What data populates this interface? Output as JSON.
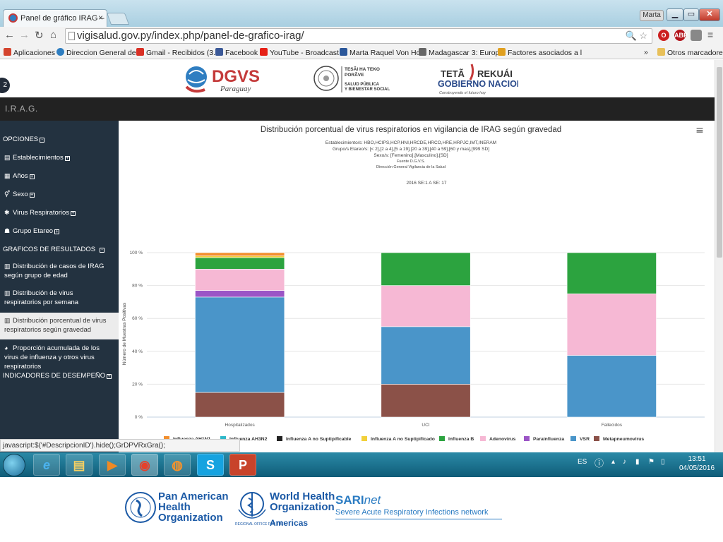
{
  "browser": {
    "tab_title": "Panel de gráfico IRAG – D",
    "tab_close": "×",
    "user_label": "Marta",
    "url": "vigisalud.gov.py/index.php/panel-de-grafico-irag/",
    "omnibox_icons": "🔍 ☆",
    "bookmarks": [
      {
        "label": "Aplicaciones",
        "color": "#d4442e"
      },
      {
        "label": "Direccion General de",
        "color": "#2f7ec1"
      },
      {
        "label": "Gmail - Recibidos (3.2",
        "color": "#d93025"
      },
      {
        "label": "Facebook",
        "color": "#3b5998"
      },
      {
        "label": "YouTube - Broadcast",
        "color": "#e62117"
      },
      {
        "label": "Marta Raquel Von Ho",
        "color": "#2b579a"
      },
      {
        "label": "Madagascar 3: Europ",
        "color": "#666666"
      },
      {
        "label": "Factores asociados a l",
        "color": "#e0a020"
      }
    ],
    "bookmarks_more": "»",
    "other_bookmarks": "Otros marcadores",
    "status_text": "javascript:$('#DescripcionID').hide();GrDPVRxGra();"
  },
  "logos": {
    "dgvs": "DGVS",
    "dgvs_sub": "Paraguay",
    "ministry_line1": "TESÃI HA TEKO",
    "ministry_line2": "PORÃVE",
    "ministry_line3": "SALUD PÚBLICA",
    "ministry_line4": "Y BIENESTAR SOCIAL",
    "gov_line1": "TETÃ",
    "gov_line1b": "REKUÁI",
    "gov_line2": "GOBIERNO NACIONAL",
    "gov_line3": "Construyendo el futuro hoy"
  },
  "app": {
    "title": "I.R.A.G.",
    "menu_toggle": "2"
  },
  "sidebar": {
    "opciones": "OPCIONES",
    "establecimientos": "Establecimientos",
    "anos": "Años",
    "sexo": "Sexo",
    "virus": "Virus Respiratorios",
    "grupo": "Grupo Etareo",
    "graficos": "GRAFICOS DE RESULTADOS",
    "item1": "Distribución de casos de IRAG según grupo de edad",
    "item2": "Distribución de virus respiratorios por semana",
    "item3": "Distribución porcentual de virus respiratorios según gravedad",
    "item4": "Proporción acumulada de los virus de influenza y otros virus respiratorios",
    "indicadores": "INDICADORES DE DESEMPEÑO"
  },
  "chart_data": {
    "type": "bar",
    "stacked": true,
    "title": "Distribución porcentual de virus respiratorios en vigilancia de IRAG según gravedad",
    "subtitle_lines": [
      "Establecimiento/s: HBO,HCIPS,HCP,HNI,HRCDE,HRCO,HRE,HRPJC,IMT,INERAM",
      "Grupo/s Etareo/s: [< 2],[2 a 4],[5 a 19],[20 a 39],[40 a 59],[60 y mas],[999 SD]",
      "Sexo/s: [Femenino],[Masculino],[SD]",
      "Fuente D.G.V.S.",
      "Dirección General Vigilancia de la Salud"
    ],
    "period": "2016 SE:1 A SE: 17",
    "ylabel": "Número de Muestras Positivas",
    "xlabel": "",
    "ylim": [
      0,
      100
    ],
    "yticks": [
      "0 %",
      "20 %",
      "40 %",
      "60 %",
      "80 %",
      "100 %"
    ],
    "categories": [
      "Hospitalizados",
      "UCI",
      "Fallecidos"
    ],
    "series": [
      {
        "name": "Influenza AH1N1",
        "color": "#f28f2e",
        "values": [
          2,
          0,
          0
        ]
      },
      {
        "name": "Influenza AH3N2",
        "color": "#2fb8c9",
        "values": [
          0,
          0,
          0
        ]
      },
      {
        "name": "Influenza A no Suptipificable",
        "color": "#222222",
        "values": [
          0,
          0,
          0
        ]
      },
      {
        "name": "Influenza A no Suptipificado",
        "color": "#f2d03b",
        "values": [
          1,
          0,
          0
        ]
      },
      {
        "name": "Influenza B",
        "color": "#2ca33f",
        "values": [
          7,
          20,
          25
        ]
      },
      {
        "name": "Adenovirus",
        "color": "#f6b8d4",
        "values": [
          13,
          25,
          37.5
        ]
      },
      {
        "name": "Parainfluenza",
        "color": "#9b55c6",
        "values": [
          4,
          0,
          0
        ]
      },
      {
        "name": "VSR",
        "color": "#4a95c9",
        "values": [
          58,
          35,
          37.5
        ]
      },
      {
        "name": "Metapneumovirus",
        "color": "#8b5148",
        "values": [
          15,
          20,
          0
        ]
      }
    ],
    "legend_position": "bottom",
    "grid": true,
    "menu_icon": "≡"
  },
  "taskbar": {
    "lang": "ES",
    "time": "13:51",
    "date": "04/05/2016"
  },
  "footer": {
    "paho": [
      "Pan American",
      "Health",
      "Organization"
    ],
    "who": [
      "World Health",
      "Organization"
    ],
    "who_regional": "REGIONAL OFFICE FOR THE",
    "who_americas": "Americas",
    "sari_a": "SARI",
    "sari_b": "net",
    "sari_sub": "Severe Acute Respiratory Infections network"
  }
}
